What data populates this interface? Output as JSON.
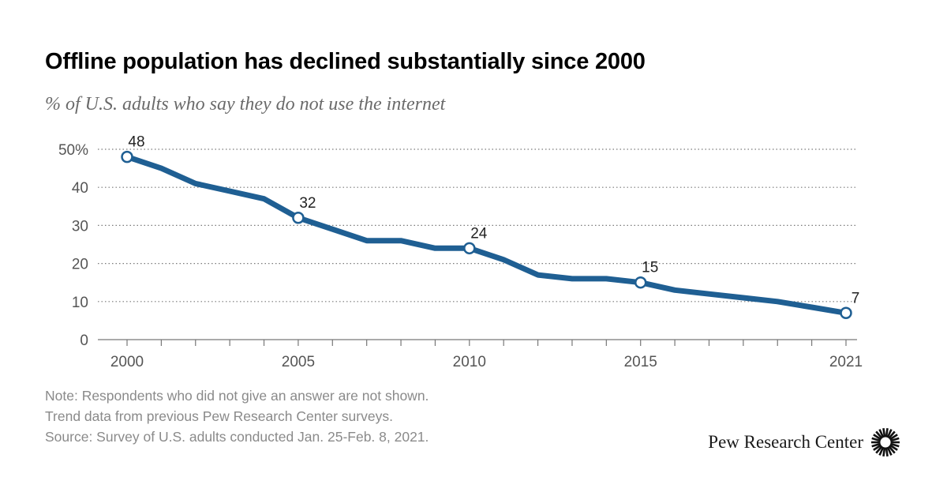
{
  "chart_data": {
    "type": "line",
    "title": "Offline population has declined substantially since 2000",
    "subtitle": "% of U.S. adults who say they do not use the internet",
    "xlabel": "",
    "ylabel": "",
    "xlim": [
      2000,
      2021
    ],
    "ylim": [
      0,
      50
    ],
    "x_ticks": [
      2000,
      2005,
      2010,
      2015,
      2021
    ],
    "y_ticks": [
      {
        "value": 0,
        "label": "0"
      },
      {
        "value": 10,
        "label": "10"
      },
      {
        "value": 20,
        "label": "20"
      },
      {
        "value": 30,
        "label": "30"
      },
      {
        "value": 40,
        "label": "40"
      },
      {
        "value": 50,
        "label": "50%"
      }
    ],
    "grid": "horizontal dotted",
    "series": [
      {
        "color": "#1f5f93",
        "points": [
          {
            "x": 2000,
            "y": 48
          },
          {
            "x": 2001,
            "y": 45
          },
          {
            "x": 2002,
            "y": 41
          },
          {
            "x": 2003,
            "y": 39
          },
          {
            "x": 2004,
            "y": 37
          },
          {
            "x": 2005,
            "y": 32
          },
          {
            "x": 2006,
            "y": 29
          },
          {
            "x": 2007,
            "y": 26
          },
          {
            "x": 2008,
            "y": 26
          },
          {
            "x": 2009,
            "y": 24
          },
          {
            "x": 2010,
            "y": 24
          },
          {
            "x": 2011,
            "y": 21
          },
          {
            "x": 2012,
            "y": 17
          },
          {
            "x": 2013,
            "y": 16
          },
          {
            "x": 2014,
            "y": 16
          },
          {
            "x": 2015,
            "y": 15
          },
          {
            "x": 2016,
            "y": 13
          },
          {
            "x": 2017,
            "y": 12
          },
          {
            "x": 2018,
            "y": 11
          },
          {
            "x": 2019,
            "y": 10
          },
          {
            "x": 2020,
            "y": 8.5
          },
          {
            "x": 2021,
            "y": 7
          }
        ]
      }
    ],
    "labeled_points": [
      {
        "x": 2000,
        "y": 48,
        "label": "48"
      },
      {
        "x": 2005,
        "y": 32,
        "label": "32"
      },
      {
        "x": 2010,
        "y": 24,
        "label": "24"
      },
      {
        "x": 2015,
        "y": 15,
        "label": "15"
      },
      {
        "x": 2021,
        "y": 7,
        "label": "7"
      }
    ]
  },
  "notes": [
    "Note: Respondents who did not give an answer are not shown.",
    "Trend data from previous Pew Research Center surveys.",
    "Source: Survey of U.S. adults conducted Jan. 25-Feb. 8, 2021."
  ],
  "brand": {
    "name": "Pew Research Center",
    "logo_icon": "pew-starburst-icon"
  }
}
